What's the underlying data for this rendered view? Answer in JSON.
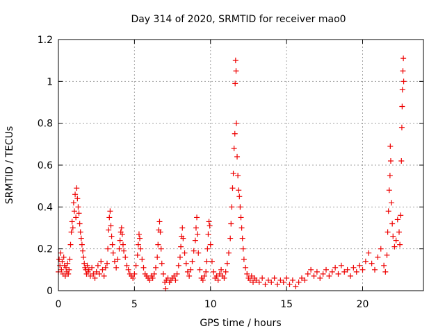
{
  "chart_data": {
    "type": "scatter",
    "title": "Day 314 of 2020, SRMTID for receiver mao0",
    "xlabel": "GPS time / hours",
    "ylabel": "SRMTID / TECUs",
    "xlim": [
      0,
      24
    ],
    "ylim": [
      0,
      1.2
    ],
    "x_ticks": [
      0,
      5,
      10,
      15,
      20
    ],
    "x_tick_labels": [
      "0",
      "5",
      "10",
      "15",
      "20"
    ],
    "y_ticks": [
      0,
      0.2,
      0.4,
      0.6,
      0.8,
      1.0,
      1.2
    ],
    "y_tick_labels": [
      "0",
      "0.2",
      "0.4",
      "0.6",
      "0.8",
      "1",
      "1.2"
    ],
    "grid": true,
    "marker": "plus",
    "series": [
      {
        "name": "SRMTID",
        "color": "#ee0000",
        "points": [
          [
            0.0,
            0.09
          ],
          [
            0.05,
            0.15
          ],
          [
            0.1,
            0.12
          ],
          [
            0.15,
            0.18
          ],
          [
            0.2,
            0.1
          ],
          [
            0.25,
            0.14
          ],
          [
            0.3,
            0.08
          ],
          [
            0.35,
            0.16
          ],
          [
            0.4,
            0.12
          ],
          [
            0.45,
            0.07
          ],
          [
            0.5,
            0.11
          ],
          [
            0.55,
            0.09
          ],
          [
            0.6,
            0.13
          ],
          [
            0.65,
            0.08
          ],
          [
            0.7,
            0.1
          ],
          [
            0.75,
            0.15
          ],
          [
            0.8,
            0.22
          ],
          [
            0.85,
            0.28
          ],
          [
            0.9,
            0.33
          ],
          [
            0.95,
            0.3
          ],
          [
            1.0,
            0.42
          ],
          [
            1.05,
            0.38
          ],
          [
            1.1,
            0.46
          ],
          [
            1.15,
            0.35
          ],
          [
            1.2,
            0.49
          ],
          [
            1.25,
            0.44
          ],
          [
            1.3,
            0.4
          ],
          [
            1.35,
            0.37
          ],
          [
            1.4,
            0.32
          ],
          [
            1.45,
            0.28
          ],
          [
            1.5,
            0.25
          ],
          [
            1.55,
            0.22
          ],
          [
            1.6,
            0.19
          ],
          [
            1.65,
            0.16
          ],
          [
            1.7,
            0.13
          ],
          [
            1.75,
            0.11
          ],
          [
            1.8,
            0.1
          ],
          [
            1.85,
            0.08
          ],
          [
            1.9,
            0.12
          ],
          [
            1.95,
            0.09
          ],
          [
            2.0,
            0.1
          ],
          [
            2.1,
            0.07
          ],
          [
            2.2,
            0.11
          ],
          [
            2.3,
            0.08
          ],
          [
            2.4,
            0.06
          ],
          [
            2.5,
            0.09
          ],
          [
            2.6,
            0.12
          ],
          [
            2.7,
            0.08
          ],
          [
            2.8,
            0.14
          ],
          [
            2.9,
            0.1
          ],
          [
            3.0,
            0.07
          ],
          [
            3.1,
            0.11
          ],
          [
            3.2,
            0.13
          ],
          [
            3.25,
            0.2
          ],
          [
            3.3,
            0.29
          ],
          [
            3.35,
            0.35
          ],
          [
            3.4,
            0.38
          ],
          [
            3.45,
            0.31
          ],
          [
            3.5,
            0.26
          ],
          [
            3.55,
            0.22
          ],
          [
            3.6,
            0.18
          ],
          [
            3.7,
            0.14
          ],
          [
            3.8,
            0.11
          ],
          [
            3.9,
            0.15
          ],
          [
            4.0,
            0.2
          ],
          [
            4.05,
            0.24
          ],
          [
            4.1,
            0.28
          ],
          [
            4.15,
            0.3
          ],
          [
            4.2,
            0.27
          ],
          [
            4.25,
            0.22
          ],
          [
            4.3,
            0.19
          ],
          [
            4.4,
            0.16
          ],
          [
            4.5,
            0.12
          ],
          [
            4.6,
            0.1
          ],
          [
            4.7,
            0.08
          ],
          [
            4.8,
            0.07
          ],
          [
            4.9,
            0.06
          ],
          [
            5.0,
            0.08
          ],
          [
            5.1,
            0.12
          ],
          [
            5.2,
            0.17
          ],
          [
            5.25,
            0.22
          ],
          [
            5.3,
            0.27
          ],
          [
            5.35,
            0.25
          ],
          [
            5.4,
            0.2
          ],
          [
            5.5,
            0.15
          ],
          [
            5.6,
            0.11
          ],
          [
            5.7,
            0.08
          ],
          [
            5.8,
            0.07
          ],
          [
            5.9,
            0.06
          ],
          [
            6.0,
            0.05
          ],
          [
            6.1,
            0.07
          ],
          [
            6.2,
            0.06
          ],
          [
            6.3,
            0.08
          ],
          [
            6.4,
            0.11
          ],
          [
            6.5,
            0.16
          ],
          [
            6.55,
            0.22
          ],
          [
            6.6,
            0.29
          ],
          [
            6.65,
            0.33
          ],
          [
            6.7,
            0.28
          ],
          [
            6.75,
            0.2
          ],
          [
            6.8,
            0.13
          ],
          [
            6.9,
            0.08
          ],
          [
            7.0,
            0.04
          ],
          [
            7.05,
            0.01
          ],
          [
            7.1,
            0.05
          ],
          [
            7.2,
            0.06
          ],
          [
            7.3,
            0.04
          ],
          [
            7.4,
            0.05
          ],
          [
            7.5,
            0.06
          ],
          [
            7.6,
            0.07
          ],
          [
            7.7,
            0.05
          ],
          [
            7.8,
            0.08
          ],
          [
            7.9,
            0.12
          ],
          [
            8.0,
            0.16
          ],
          [
            8.05,
            0.21
          ],
          [
            8.1,
            0.26
          ],
          [
            8.15,
            0.3
          ],
          [
            8.2,
            0.25
          ],
          [
            8.3,
            0.18
          ],
          [
            8.4,
            0.13
          ],
          [
            8.5,
            0.09
          ],
          [
            8.6,
            0.07
          ],
          [
            8.7,
            0.1
          ],
          [
            8.8,
            0.14
          ],
          [
            8.9,
            0.19
          ],
          [
            9.0,
            0.24
          ],
          [
            9.05,
            0.3
          ],
          [
            9.1,
            0.35
          ],
          [
            9.15,
            0.27
          ],
          [
            9.2,
            0.18
          ],
          [
            9.3,
            0.1
          ],
          [
            9.4,
            0.06
          ],
          [
            9.5,
            0.05
          ],
          [
            9.6,
            0.07
          ],
          [
            9.7,
            0.09
          ],
          [
            9.75,
            0.14
          ],
          [
            9.8,
            0.2
          ],
          [
            9.85,
            0.27
          ],
          [
            9.9,
            0.33
          ],
          [
            9.95,
            0.31
          ],
          [
            10.0,
            0.22
          ],
          [
            10.1,
            0.14
          ],
          [
            10.2,
            0.09
          ],
          [
            10.3,
            0.06
          ],
          [
            10.4,
            0.07
          ],
          [
            10.5,
            0.05
          ],
          [
            10.6,
            0.08
          ],
          [
            10.7,
            0.1
          ],
          [
            10.8,
            0.07
          ],
          [
            10.9,
            0.06
          ],
          [
            11.0,
            0.09
          ],
          [
            11.1,
            0.13
          ],
          [
            11.2,
            0.18
          ],
          [
            11.3,
            0.25
          ],
          [
            11.35,
            0.32
          ],
          [
            11.4,
            0.4
          ],
          [
            11.45,
            0.49
          ],
          [
            11.5,
            0.56
          ],
          [
            11.55,
            0.68
          ],
          [
            11.6,
            0.75
          ],
          [
            11.62,
            0.99
          ],
          [
            11.65,
            1.1
          ],
          [
            11.68,
            1.05
          ],
          [
            11.7,
            0.8
          ],
          [
            11.75,
            0.64
          ],
          [
            11.8,
            0.55
          ],
          [
            11.85,
            0.48
          ],
          [
            11.9,
            0.45
          ],
          [
            11.95,
            0.4
          ],
          [
            12.0,
            0.35
          ],
          [
            12.05,
            0.3
          ],
          [
            12.1,
            0.25
          ],
          [
            12.15,
            0.2
          ],
          [
            12.2,
            0.15
          ],
          [
            12.3,
            0.11
          ],
          [
            12.4,
            0.08
          ],
          [
            12.5,
            0.06
          ],
          [
            12.6,
            0.05
          ],
          [
            12.7,
            0.07
          ],
          [
            12.8,
            0.04
          ],
          [
            12.9,
            0.06
          ],
          [
            13.0,
            0.05
          ],
          [
            13.2,
            0.04
          ],
          [
            13.4,
            0.06
          ],
          [
            13.6,
            0.03
          ],
          [
            13.8,
            0.05
          ],
          [
            14.0,
            0.04
          ],
          [
            14.2,
            0.06
          ],
          [
            14.4,
            0.03
          ],
          [
            14.6,
            0.05
          ],
          [
            14.8,
            0.04
          ],
          [
            15.0,
            0.06
          ],
          [
            15.2,
            0.03
          ],
          [
            15.4,
            0.05
          ],
          [
            15.6,
            0.02
          ],
          [
            15.8,
            0.04
          ],
          [
            16.0,
            0.06
          ],
          [
            16.2,
            0.05
          ],
          [
            16.4,
            0.08
          ],
          [
            16.6,
            0.1
          ],
          [
            16.8,
            0.07
          ],
          [
            17.0,
            0.09
          ],
          [
            17.2,
            0.06
          ],
          [
            17.4,
            0.08
          ],
          [
            17.6,
            0.1
          ],
          [
            17.8,
            0.07
          ],
          [
            18.0,
            0.09
          ],
          [
            18.2,
            0.11
          ],
          [
            18.4,
            0.08
          ],
          [
            18.6,
            0.12
          ],
          [
            18.8,
            0.09
          ],
          [
            19.0,
            0.1
          ],
          [
            19.2,
            0.07
          ],
          [
            19.4,
            0.11
          ],
          [
            19.6,
            0.09
          ],
          [
            19.8,
            0.12
          ],
          [
            20.0,
            0.1
          ],
          [
            20.2,
            0.14
          ],
          [
            20.4,
            0.18
          ],
          [
            20.6,
            0.13
          ],
          [
            20.8,
            0.1
          ],
          [
            21.0,
            0.16
          ],
          [
            21.2,
            0.2
          ],
          [
            21.4,
            0.12
          ],
          [
            21.5,
            0.09
          ],
          [
            21.6,
            0.17
          ],
          [
            21.65,
            0.28
          ],
          [
            21.7,
            0.38
          ],
          [
            21.75,
            0.48
          ],
          [
            21.8,
            0.55
          ],
          [
            21.82,
            0.69
          ],
          [
            21.85,
            0.62
          ],
          [
            21.9,
            0.42
          ],
          [
            21.95,
            0.32
          ],
          [
            22.0,
            0.26
          ],
          [
            22.1,
            0.21
          ],
          [
            22.2,
            0.24
          ],
          [
            22.3,
            0.34
          ],
          [
            22.4,
            0.28
          ],
          [
            22.45,
            0.22
          ],
          [
            22.5,
            0.36
          ],
          [
            22.55,
            0.62
          ],
          [
            22.58,
            0.78
          ],
          [
            22.6,
            0.88
          ],
          [
            22.62,
            0.96
          ],
          [
            22.65,
            1.05
          ],
          [
            22.68,
            1.11
          ],
          [
            22.7,
            1.0
          ]
        ]
      }
    ]
  }
}
